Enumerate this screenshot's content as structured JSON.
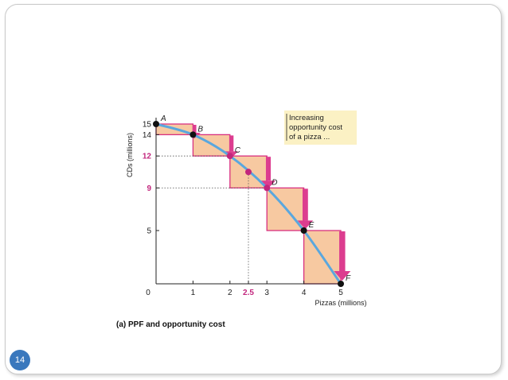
{
  "slide": {
    "page_number": "14"
  },
  "colors": {
    "curve": "#5aa7de",
    "box_fill": "#f7c9a1",
    "box_stroke": "#d8307f",
    "arrow": "#dc3d8f",
    "magenta": "#c2267d",
    "callout_fill": "#fbf1c4"
  },
  "chart_data": {
    "type": "line",
    "title": "(a) PPF and opportunity cost",
    "xlabel": "Pizzas (millions)",
    "ylabel": "CDs (millions)",
    "xlim": [
      0,
      5
    ],
    "ylim": [
      0,
      15
    ],
    "x_ticks": [
      "0",
      "1",
      "2",
      "2.5",
      "3",
      "4",
      "5"
    ],
    "y_ticks": [
      "15",
      "14",
      "12",
      "9",
      "5"
    ],
    "highlighted_ticks": [
      "2.5",
      "12",
      "9"
    ],
    "points": [
      {
        "label": "A",
        "x": 0,
        "y": 15
      },
      {
        "label": "B",
        "x": 1,
        "y": 14
      },
      {
        "label": "C",
        "x": 2,
        "y": 12
      },
      {
        "label": "D",
        "x": 3,
        "y": 9
      },
      {
        "label": "E",
        "x": 4,
        "y": 5
      },
      {
        "label": "F",
        "x": 5,
        "y": 0
      }
    ],
    "midpoint": {
      "x": 2.5,
      "y": 10.5
    },
    "opportunity_cost_steps": [
      1,
      2,
      3,
      4,
      5
    ],
    "annotation": [
      "Increasing",
      "opportunity cost",
      "of a pizza ..."
    ]
  }
}
